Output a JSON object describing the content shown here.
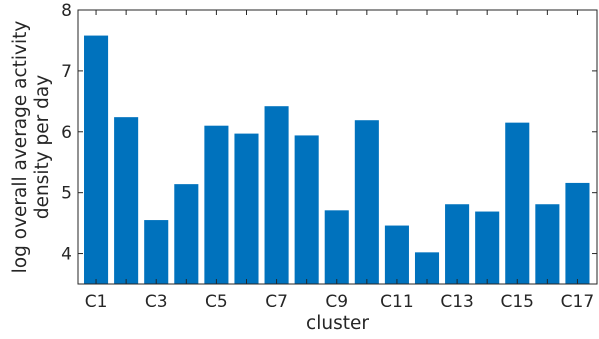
{
  "chart_data": {
    "type": "bar",
    "categories": [
      "C1",
      "C2",
      "C3",
      "C4",
      "C5",
      "C6",
      "C7",
      "C8",
      "C9",
      "C10",
      "C11",
      "C12",
      "C13",
      "C14",
      "C15",
      "C16",
      "C17"
    ],
    "values": [
      7.58,
      6.24,
      4.55,
      5.14,
      6.1,
      5.97,
      6.42,
      5.94,
      4.71,
      6.19,
      4.46,
      4.02,
      4.81,
      4.69,
      6.15,
      4.81,
      5.16
    ],
    "x_tick_labels": [
      "C1",
      "C3",
      "C5",
      "C7",
      "C9",
      "C11",
      "C13",
      "C15",
      "C17"
    ],
    "y_ticks": [
      4,
      5,
      6,
      7,
      8
    ],
    "ylim": [
      3.5,
      8
    ],
    "xlabel": "cluster",
    "ylabel": "log overall average activity density per day",
    "ylabel_lines": [
      "log overall average activity",
      "density per day"
    ],
    "bar_color": "#0072BD",
    "grid": false,
    "box": true
  }
}
